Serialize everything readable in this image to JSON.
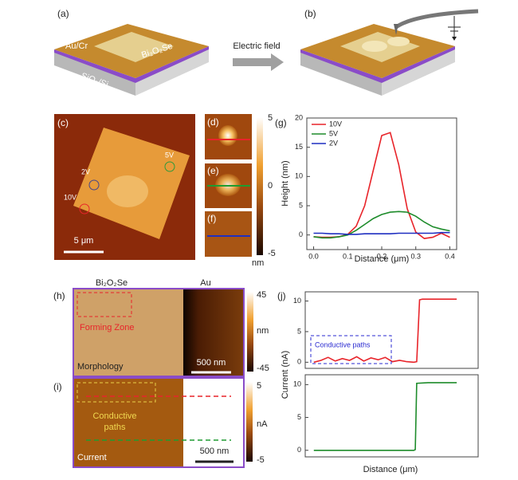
{
  "schematic": {
    "label_a": "(a)",
    "label_b": "(b)",
    "metal": "Au/Cr",
    "flake": "Bi₂O₂Se",
    "substrate": "SiO₂/Si",
    "arrow": "Electric field"
  },
  "afm": {
    "label_c": "(c)",
    "label_d": "(d)",
    "label_e": "(e)",
    "label_f": "(f)",
    "voltages": [
      "2V",
      "5V",
      "10V"
    ],
    "scale_bar": "5 μm",
    "colorbar": {
      "ticks": [
        5,
        0,
        -5
      ],
      "unit": "nm"
    }
  },
  "maps": {
    "label_h": "(h)",
    "label_i": "(i)",
    "material_left": "Bi₂O₂Se",
    "material_right": "Au",
    "forming_zone": "Forming Zone",
    "morphology": "Morphology",
    "scale_bar_h": "500 nm",
    "colorbar_h": {
      "ticks": [
        45,
        -45
      ],
      "unit": "nm"
    },
    "conductive_paths": [
      "Conductive",
      "paths"
    ],
    "current": "Current",
    "scale_bar_i": "500 nm",
    "colorbar_i": {
      "ticks": [
        5,
        -5
      ],
      "unit": "nA"
    }
  },
  "chart_data": [
    {
      "type": "line",
      "panel_label": "(g)",
      "xlabel": "Distance (μm)",
      "ylabel": "Height (nm)",
      "x": [
        0,
        0.025,
        0.05,
        0.075,
        0.1,
        0.125,
        0.15,
        0.175,
        0.2,
        0.225,
        0.25,
        0.275,
        0.3,
        0.325,
        0.35,
        0.375,
        0.4
      ],
      "series": [
        {
          "name": "10V",
          "color": "#e8242a",
          "values": [
            -0.3,
            -0.4,
            -0.4,
            -0.3,
            0.1,
            1.5,
            5,
            11,
            17,
            17.5,
            12,
            4.5,
            0.5,
            -0.6,
            -0.4,
            0.3,
            -0.4
          ]
        },
        {
          "name": "5V",
          "color": "#1e8c2b",
          "values": [
            -0.3,
            -0.5,
            -0.5,
            -0.3,
            0,
            0.8,
            1.8,
            2.8,
            3.5,
            3.9,
            4,
            3.9,
            3.2,
            2.2,
            1.4,
            1,
            0.7
          ]
        },
        {
          "name": "2V",
          "color": "#1f2fc0",
          "values": [
            0.3,
            0.3,
            0.2,
            0.2,
            0.1,
            0.1,
            0.2,
            0.2,
            0.2,
            0.2,
            0.3,
            0.3,
            0.3,
            0.3,
            0.3,
            0.4,
            0.4
          ]
        }
      ],
      "xlim": [
        -0.02,
        0.42
      ],
      "ylim": [
        -2.5,
        20
      ],
      "xticks": [
        {
          "value": 0,
          "label": "0.0"
        },
        0.1,
        0.2,
        0.3,
        0.4
      ],
      "yticks": [
        0,
        5,
        10,
        15,
        20
      ],
      "legend": "upper left"
    },
    {
      "type": "line",
      "panel_label": "(j)",
      "annotation": "Conductive paths",
      "x": [
        0,
        0.05,
        0.1,
        0.15,
        0.2,
        0.25,
        0.3,
        0.35,
        0.4,
        0.45,
        0.5,
        0.55,
        0.6,
        0.65,
        0.7,
        0.72,
        0.74,
        0.76,
        0.8,
        0.85,
        0.9,
        0.95,
        1
      ],
      "series": [
        {
          "name": "Current",
          "color": "#e8242a",
          "values": [
            0,
            0.3,
            0.8,
            0.2,
            0.6,
            0.3,
            0.9,
            0.2,
            0.7,
            0.4,
            0.8,
            0.1,
            0.3,
            0.1,
            0,
            0.1,
            10.2,
            10.3,
            10.3,
            10.3,
            10.3,
            10.3,
            10.3
          ]
        }
      ],
      "xlim": [
        -0.06,
        1.15
      ],
      "ylim": [
        -1,
        11.5
      ],
      "yticks": [
        0,
        5,
        10
      ]
    },
    {
      "type": "line",
      "xlabel": "Distance (μm)",
      "ylabel": "Current (nA)",
      "x": [
        0,
        0.1,
        0.2,
        0.3,
        0.4,
        0.5,
        0.6,
        0.7,
        0.71,
        0.72,
        0.8,
        0.9,
        1
      ],
      "series": [
        {
          "name": "Current",
          "color": "#1e8c2b",
          "values": [
            0,
            0,
            0,
            0,
            0,
            0,
            0,
            0,
            0.1,
            10.2,
            10.3,
            10.3,
            10.3
          ]
        }
      ],
      "xlim": [
        -0.06,
        1.15
      ],
      "ylim": [
        -1,
        11.5
      ],
      "yticks": [
        0,
        5,
        10
      ]
    }
  ]
}
